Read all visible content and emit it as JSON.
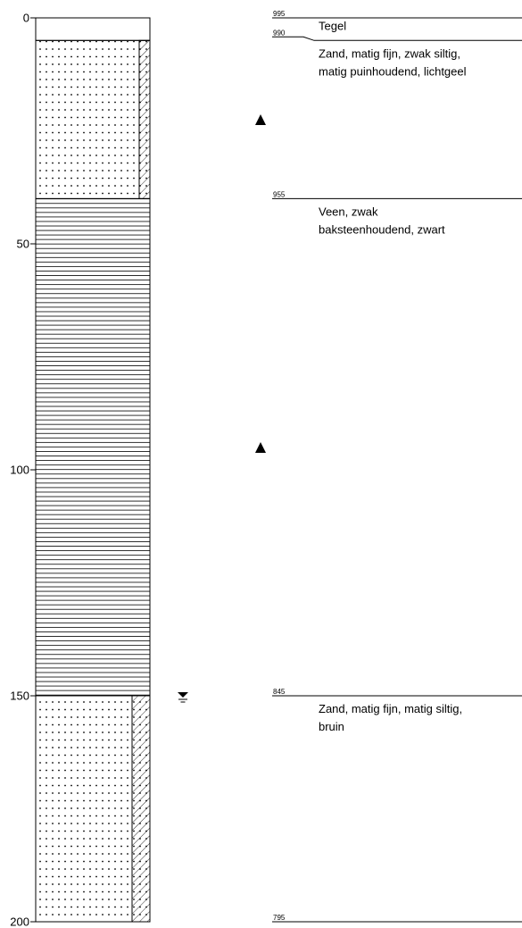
{
  "depth_axis": {
    "ticks": [
      0,
      50,
      100,
      150,
      200
    ]
  },
  "boundaries": [
    995,
    990,
    955,
    845,
    795
  ],
  "layers": [
    {
      "description": [
        "Tegel"
      ]
    },
    {
      "description": [
        "Zand, matig fijn, zwak siltig,",
        "matig puinhoudend, lichtgeel"
      ]
    },
    {
      "description": [
        "Veen, zwak",
        "baksteenhoudend, zwart"
      ]
    },
    {
      "description": [
        "Zand, matig fijn, matig siltig,",
        "bruin"
      ]
    }
  ]
}
